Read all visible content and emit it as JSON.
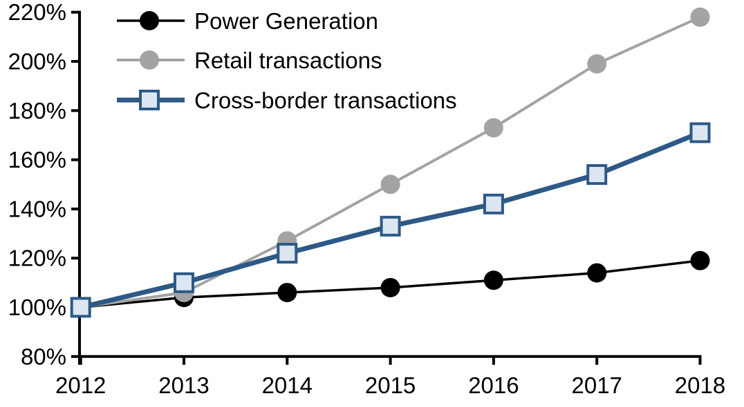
{
  "chart_data": {
    "type": "line",
    "x_categories": [
      "2012",
      "2013",
      "2014",
      "2015",
      "2016",
      "2017",
      "2018"
    ],
    "y_axis": {
      "min": 80,
      "max": 220,
      "step": 20,
      "unit": "%"
    },
    "y_tick_labels": [
      "80%",
      "100%",
      "120%",
      "140%",
      "160%",
      "180%",
      "200%",
      "220%"
    ],
    "series": [
      {
        "name": "Power Generation",
        "color": "#000000",
        "marker": "circle",
        "marker_fill": "#000000",
        "line_width": 3.5,
        "values": [
          100,
          104,
          106,
          108,
          111,
          114,
          119
        ]
      },
      {
        "name": "Retail transactions",
        "color": "#A3A3A3",
        "marker": "circle",
        "marker_fill": "#A3A3A3",
        "line_width": 4,
        "values": [
          100,
          106,
          127,
          150,
          173,
          199,
          218
        ]
      },
      {
        "name": "Cross-border transactions",
        "color": "#2D5986",
        "marker": "square",
        "marker_fill": "#DCE6F1",
        "line_width": 7,
        "values": [
          100,
          110,
          122,
          133,
          142,
          154,
          171
        ]
      }
    ],
    "legend_position": "top-left-inside",
    "grid": false,
    "axis_color": "#000000",
    "background": "#FFFFFF"
  }
}
